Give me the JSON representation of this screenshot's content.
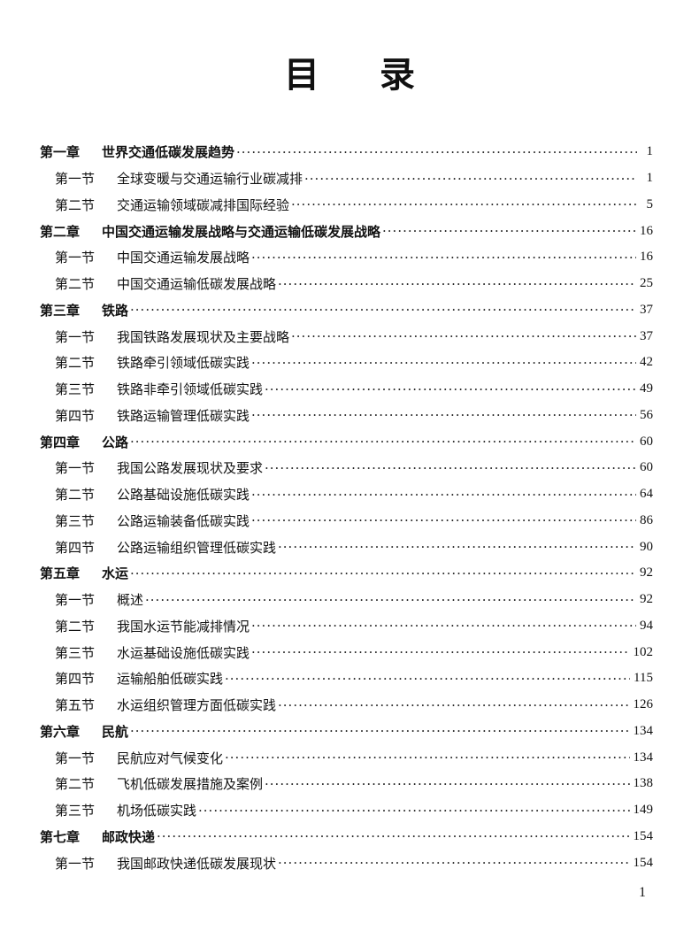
{
  "title": [
    "目",
    "录"
  ],
  "toc": [
    {
      "type": "chapter",
      "num": "第一章",
      "name": "世界交通低碳发展趋势",
      "page": "1"
    },
    {
      "type": "section",
      "num": "第一节",
      "name": "全球变暖与交通运输行业碳减排",
      "page": "1"
    },
    {
      "type": "section",
      "num": "第二节",
      "name": "交通运输领域碳减排国际经验",
      "page": "5"
    },
    {
      "type": "chapter",
      "num": "第二章",
      "name": "中国交通运输发展战略与交通运输低碳发展战略",
      "page": "16"
    },
    {
      "type": "section",
      "num": "第一节",
      "name": "中国交通运输发展战略",
      "page": "16"
    },
    {
      "type": "section",
      "num": "第二节",
      "name": "中国交通运输低碳发展战略",
      "page": "25"
    },
    {
      "type": "chapter",
      "num": "第三章",
      "name": "铁路",
      "page": "37"
    },
    {
      "type": "section",
      "num": "第一节",
      "name": "我国铁路发展现状及主要战略",
      "page": "37"
    },
    {
      "type": "section",
      "num": "第二节",
      "name": "铁路牵引领域低碳实践",
      "page": "42"
    },
    {
      "type": "section",
      "num": "第三节",
      "name": "铁路非牵引领域低碳实践",
      "page": "49"
    },
    {
      "type": "section",
      "num": "第四节",
      "name": "铁路运输管理低碳实践",
      "page": "56"
    },
    {
      "type": "chapter",
      "num": "第四章",
      "name": "公路",
      "page": "60"
    },
    {
      "type": "section",
      "num": "第一节",
      "name": "我国公路发展现状及要求",
      "page": "60"
    },
    {
      "type": "section",
      "num": "第二节",
      "name": "公路基础设施低碳实践",
      "page": "64"
    },
    {
      "type": "section",
      "num": "第三节",
      "name": "公路运输装备低碳实践",
      "page": "86"
    },
    {
      "type": "section",
      "num": "第四节",
      "name": "公路运输组织管理低碳实践",
      "page": "90"
    },
    {
      "type": "chapter",
      "num": "第五章",
      "name": "水运",
      "page": "92"
    },
    {
      "type": "section",
      "num": "第一节",
      "name": "概述",
      "page": "92"
    },
    {
      "type": "section",
      "num": "第二节",
      "name": "我国水运节能减排情况",
      "page": "94"
    },
    {
      "type": "section",
      "num": "第三节",
      "name": "水运基础设施低碳实践",
      "page": "102"
    },
    {
      "type": "section",
      "num": "第四节",
      "name": "运输船舶低碳实践",
      "page": "115"
    },
    {
      "type": "section",
      "num": "第五节",
      "name": "水运组织管理方面低碳实践",
      "page": "126"
    },
    {
      "type": "chapter",
      "num": "第六章",
      "name": "民航",
      "page": "134"
    },
    {
      "type": "section",
      "num": "第一节",
      "name": "民航应对气候变化",
      "page": "134"
    },
    {
      "type": "section",
      "num": "第二节",
      "name": "飞机低碳发展措施及案例",
      "page": "138"
    },
    {
      "type": "section",
      "num": "第三节",
      "name": "机场低碳实践",
      "page": "149"
    },
    {
      "type": "chapter",
      "num": "第七章",
      "name": "邮政快递",
      "page": "154"
    },
    {
      "type": "section",
      "num": "第一节",
      "name": "我国邮政快递低碳发展现状",
      "page": "154"
    }
  ],
  "folio": "1"
}
